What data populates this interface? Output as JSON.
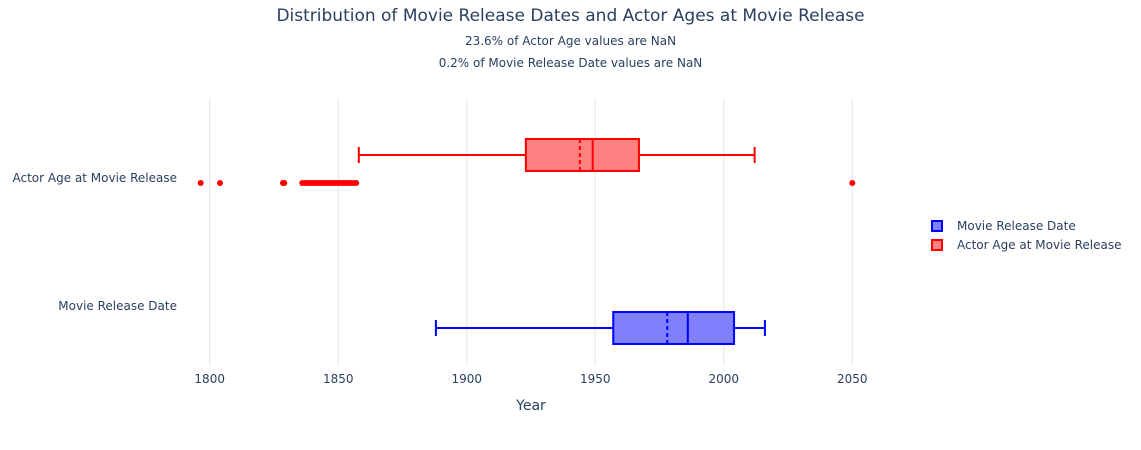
{
  "chart_data": {
    "type": "box",
    "orientation": "horizontal",
    "title": "Distribution of Movie Release Dates and Actor Ages at Movie Release",
    "subtitles": [
      "23.6% of Actor Age values are NaN",
      "0.2% of Movie Release Date values are NaN"
    ],
    "xlabel": "Year",
    "ylabel": "",
    "xlim": [
      1790,
      2060
    ],
    "xticks": [
      1800,
      1850,
      1900,
      1950,
      2000,
      2050
    ],
    "grid": true,
    "legend_position": "right",
    "series": [
      {
        "name": "Movie Release Date",
        "color": "#0000ff",
        "fill": "#8080ff",
        "min": 1888,
        "q1": 1957,
        "median": 1986,
        "mean": 1978,
        "q3": 2004,
        "max": 2016,
        "outliers": []
      },
      {
        "name": "Actor Age at Movie Release",
        "color": "#ff0000",
        "fill": "#ff8080",
        "min": 1858,
        "q1": 1923,
        "median": 1949,
        "mean": 1944,
        "q3": 1967,
        "max": 2012,
        "outliers": [
          1796.5,
          1804,
          1828.5,
          1829,
          1836,
          1837,
          1838,
          1839,
          1840,
          1841,
          1842,
          1843,
          1844,
          1845,
          1846,
          1847,
          1848,
          1849,
          1850,
          1851,
          1852,
          1853,
          1854,
          1855,
          1856,
          1857,
          2050
        ]
      }
    ]
  }
}
